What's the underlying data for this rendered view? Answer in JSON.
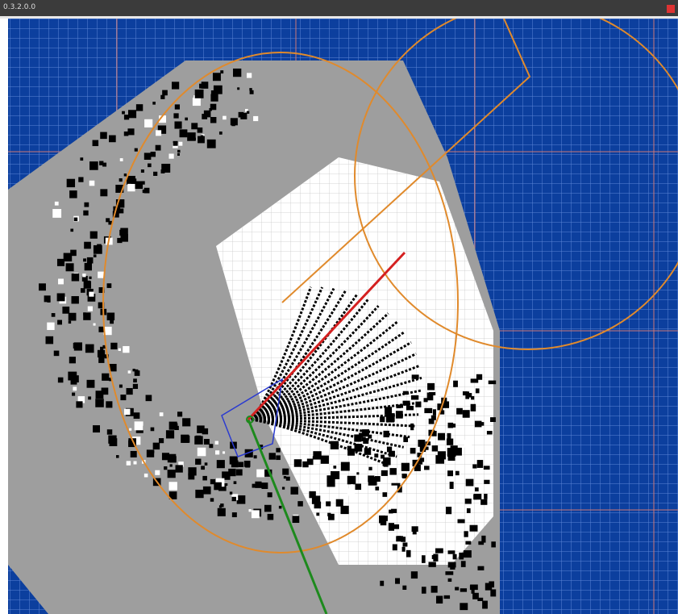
{
  "window": {
    "title": "0.3.2.0.0"
  }
}
